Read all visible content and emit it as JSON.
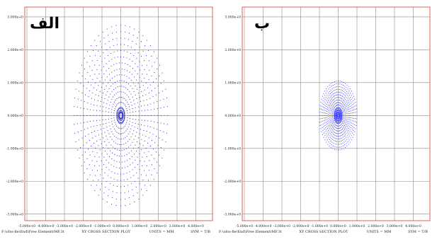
{
  "chart_data": [
    {
      "type": "scatter",
      "panel_label": "الف",
      "plot_title": "XY CROSS SECTION PLOT",
      "file_label": "F:\\ofss-fie\\End\\Free Element\\MF.3t",
      "units": "UNITS = MM",
      "sym": "SYM = T/B",
      "x_ticks": [
        "-5.000e+0",
        "-4.000e+0",
        "-3.000e+0",
        "-2.000e+0",
        "-1.000e+0",
        "0.000e+0",
        "1.000e+0",
        "2.000e+0",
        "3.000e+0",
        "4.000e+0"
      ],
      "x_tick_values": [
        -5,
        -4,
        -3,
        -2,
        -1,
        0,
        1,
        2,
        3,
        4
      ],
      "y_ticks": [
        "3.000e+0",
        "2.000e+0",
        "1.000e+0",
        "0.000e+0",
        "-1.000e+0",
        "-2.000e+0",
        "-3.000e+0"
      ],
      "y_tick_values": [
        3,
        2,
        1,
        0,
        -1,
        -2,
        -3
      ],
      "xlim": [
        -5,
        5
      ],
      "ylim": [
        -3.2,
        3.3
      ],
      "grid": true,
      "point_color": "#1a1acc",
      "pattern": {
        "rings": 16,
        "rx_max": 2.5,
        "ry_max": 2.75,
        "spokes": 64
      }
    },
    {
      "type": "scatter",
      "panel_label": "ب",
      "plot_title": "XY CROSS SECTION PLOT",
      "file_label": "F:\\ofss-fie\\End\\Free Element\\MF.3t",
      "units": "UNITS = MM",
      "sym": "SYM = T/B",
      "x_ticks": [
        "-5.000e+0",
        "-4.000e+0",
        "-3.000e+0",
        "-2.000e+0",
        "-1.000e+0",
        "0.000e+0",
        "1.000e+0",
        "2.000e+0",
        "3.000e+0",
        "4.000e+0"
      ],
      "x_tick_values": [
        -5,
        -4,
        -3,
        -2,
        -1,
        0,
        1,
        2,
        3,
        4
      ],
      "y_ticks": [
        "3.000e+0",
        "2.000e+0",
        "1.000e+0",
        "0.000e+0",
        "-1.000e+0",
        "-2.000e+0",
        "-3.000e+0"
      ],
      "y_tick_values": [
        3,
        2,
        1,
        0,
        -1,
        -2,
        -3
      ],
      "xlim": [
        -5,
        5
      ],
      "ylim": [
        -3.2,
        3.3
      ],
      "grid": true,
      "point_color": "#3333ff",
      "pattern": {
        "rings": 14,
        "rx_max": 1.0,
        "ry_max": 1.05,
        "spokes": 64
      }
    }
  ]
}
